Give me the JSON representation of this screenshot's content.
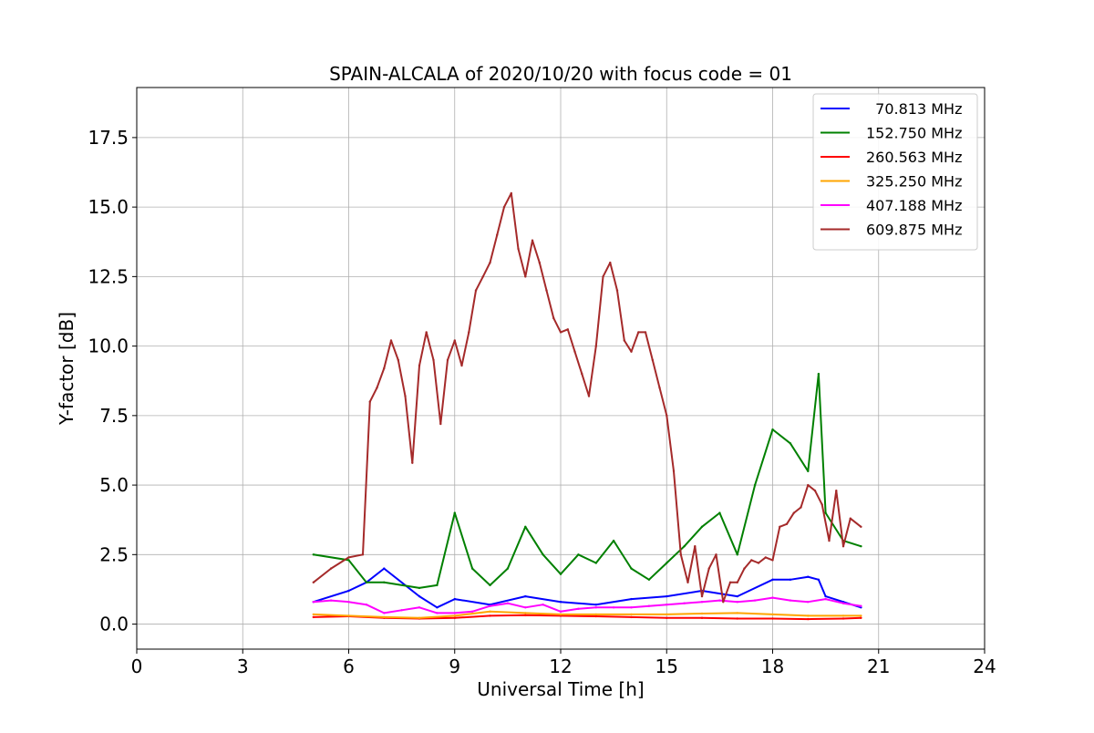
{
  "chart_data": {
    "type": "line",
    "title": "SPAIN-ALCALA of 2020/10/20 with focus code = 01",
    "xlabel": "Universal Time [h]",
    "ylabel": "Y-factor [dB]",
    "xlim": [
      0,
      24
    ],
    "ylim": [
      -0.9,
      19.3
    ],
    "xticks": [
      0,
      3,
      6,
      9,
      12,
      15,
      18,
      21,
      24
    ],
    "xtick_labels": [
      "0",
      "3",
      "6",
      "9",
      "12",
      "15",
      "18",
      "21",
      "24"
    ],
    "yticks": [
      0.0,
      2.5,
      5.0,
      7.5,
      10.0,
      12.5,
      15.0,
      17.5
    ],
    "ytick_labels": [
      "0.0",
      "2.5",
      "5.0",
      "7.5",
      "10.0",
      "12.5",
      "15.0",
      "17.5"
    ],
    "grid": true,
    "legend_position": "top-right",
    "series": [
      {
        "name": "  70.813 MHz",
        "color": "#0000ff",
        "x": [
          5.0,
          6.0,
          6.5,
          7.0,
          8.0,
          8.5,
          9.0,
          10.0,
          11.0,
          12.0,
          13.0,
          14.0,
          15.0,
          16.0,
          17.0,
          18.0,
          18.5,
          19.0,
          19.3,
          19.5,
          20.0,
          20.5
        ],
        "values": [
          0.8,
          1.2,
          1.5,
          2.0,
          1.0,
          0.6,
          0.9,
          0.7,
          1.0,
          0.8,
          0.7,
          0.9,
          1.0,
          1.2,
          1.0,
          1.6,
          1.6,
          1.7,
          1.6,
          1.0,
          0.8,
          0.6
        ]
      },
      {
        "name": "152.750 MHz",
        "color": "#008000",
        "x": [
          5.0,
          6.0,
          6.5,
          7.0,
          8.0,
          8.5,
          9.0,
          9.5,
          10.0,
          10.5,
          11.0,
          11.5,
          12.0,
          12.5,
          13.0,
          13.5,
          14.0,
          14.5,
          15.0,
          15.5,
          16.0,
          16.5,
          17.0,
          17.5,
          18.0,
          18.5,
          19.0,
          19.3,
          19.5,
          20.0,
          20.5
        ],
        "values": [
          2.5,
          2.3,
          1.5,
          1.5,
          1.3,
          1.4,
          4.0,
          2.0,
          1.4,
          2.0,
          3.5,
          2.5,
          1.8,
          2.5,
          2.2,
          3.0,
          2.0,
          1.6,
          2.2,
          2.8,
          3.5,
          4.0,
          2.5,
          5.0,
          7.0,
          6.5,
          5.5,
          9.0,
          4.0,
          3.0,
          2.8
        ]
      },
      {
        "name": "260.563 MHz",
        "color": "#ff0000",
        "x": [
          5.0,
          6.0,
          7.0,
          8.0,
          9.0,
          10.0,
          11.0,
          12.0,
          13.0,
          14.0,
          15.0,
          16.0,
          17.0,
          18.0,
          19.0,
          20.0,
          20.5
        ],
        "values": [
          0.25,
          0.28,
          0.22,
          0.2,
          0.22,
          0.3,
          0.32,
          0.3,
          0.28,
          0.25,
          0.22,
          0.22,
          0.2,
          0.2,
          0.18,
          0.2,
          0.22
        ]
      },
      {
        "name": "325.250 MHz",
        "color": "#ffa500",
        "x": [
          5.0,
          6.0,
          7.0,
          8.0,
          9.0,
          10.0,
          11.0,
          12.0,
          13.0,
          14.0,
          15.0,
          16.0,
          17.0,
          18.0,
          19.0,
          20.0,
          20.5
        ],
        "values": [
          0.35,
          0.3,
          0.25,
          0.22,
          0.3,
          0.45,
          0.4,
          0.35,
          0.35,
          0.35,
          0.35,
          0.38,
          0.4,
          0.35,
          0.3,
          0.3,
          0.3
        ]
      },
      {
        "name": "407.188 MHz",
        "color": "#ff00ff",
        "x": [
          5.0,
          5.5,
          6.0,
          6.5,
          7.0,
          7.5,
          8.0,
          8.5,
          9.0,
          9.5,
          10.0,
          10.5,
          11.0,
          11.5,
          12.0,
          12.5,
          13.0,
          13.5,
          14.0,
          14.5,
          15.0,
          15.5,
          16.0,
          16.5,
          17.0,
          17.5,
          18.0,
          18.5,
          19.0,
          19.5,
          20.0,
          20.5
        ],
        "values": [
          0.8,
          0.85,
          0.8,
          0.7,
          0.4,
          0.5,
          0.6,
          0.4,
          0.4,
          0.45,
          0.65,
          0.75,
          0.6,
          0.7,
          0.45,
          0.55,
          0.6,
          0.6,
          0.6,
          0.65,
          0.7,
          0.75,
          0.8,
          0.85,
          0.8,
          0.85,
          0.95,
          0.85,
          0.8,
          0.9,
          0.75,
          0.65
        ]
      },
      {
        "name": "609.875 MHz",
        "color": "#a52a2a",
        "x": [
          5.0,
          5.5,
          6.0,
          6.4,
          6.6,
          6.8,
          7.0,
          7.2,
          7.4,
          7.6,
          7.8,
          8.0,
          8.2,
          8.4,
          8.6,
          8.8,
          9.0,
          9.2,
          9.4,
          9.6,
          9.8,
          10.0,
          10.2,
          10.4,
          10.6,
          10.8,
          11.0,
          11.2,
          11.4,
          11.6,
          11.8,
          12.0,
          12.2,
          12.4,
          12.6,
          12.8,
          13.0,
          13.2,
          13.4,
          13.6,
          13.8,
          14.0,
          14.2,
          14.4,
          14.6,
          14.8,
          15.0,
          15.2,
          15.4,
          15.6,
          15.8,
          16.0,
          16.2,
          16.4,
          16.6,
          16.8,
          17.0,
          17.2,
          17.4,
          17.6,
          17.8,
          18.0,
          18.2,
          18.4,
          18.6,
          18.8,
          19.0,
          19.2,
          19.4,
          19.6,
          19.8,
          20.0,
          20.2,
          20.5
        ],
        "values": [
          1.5,
          2.0,
          2.4,
          2.5,
          8.0,
          8.5,
          9.2,
          10.2,
          9.5,
          8.2,
          5.8,
          9.3,
          10.5,
          9.5,
          7.2,
          9.5,
          10.2,
          9.3,
          10.5,
          12.0,
          12.5,
          13.0,
          14.0,
          15.0,
          15.5,
          13.5,
          12.5,
          13.8,
          13.0,
          12.0,
          11.0,
          10.5,
          10.6,
          9.8,
          9.0,
          8.2,
          10.0,
          12.5,
          13.0,
          12.0,
          10.2,
          9.8,
          10.5,
          10.5,
          9.5,
          8.5,
          7.5,
          5.5,
          2.5,
          1.5,
          2.8,
          1.0,
          2.0,
          2.5,
          0.8,
          1.5,
          1.5,
          2.0,
          2.3,
          2.2,
          2.4,
          2.3,
          3.5,
          3.6,
          4.0,
          4.2,
          5.0,
          4.8,
          4.3,
          3.0,
          4.8,
          2.8,
          3.8,
          3.5
        ]
      }
    ]
  }
}
